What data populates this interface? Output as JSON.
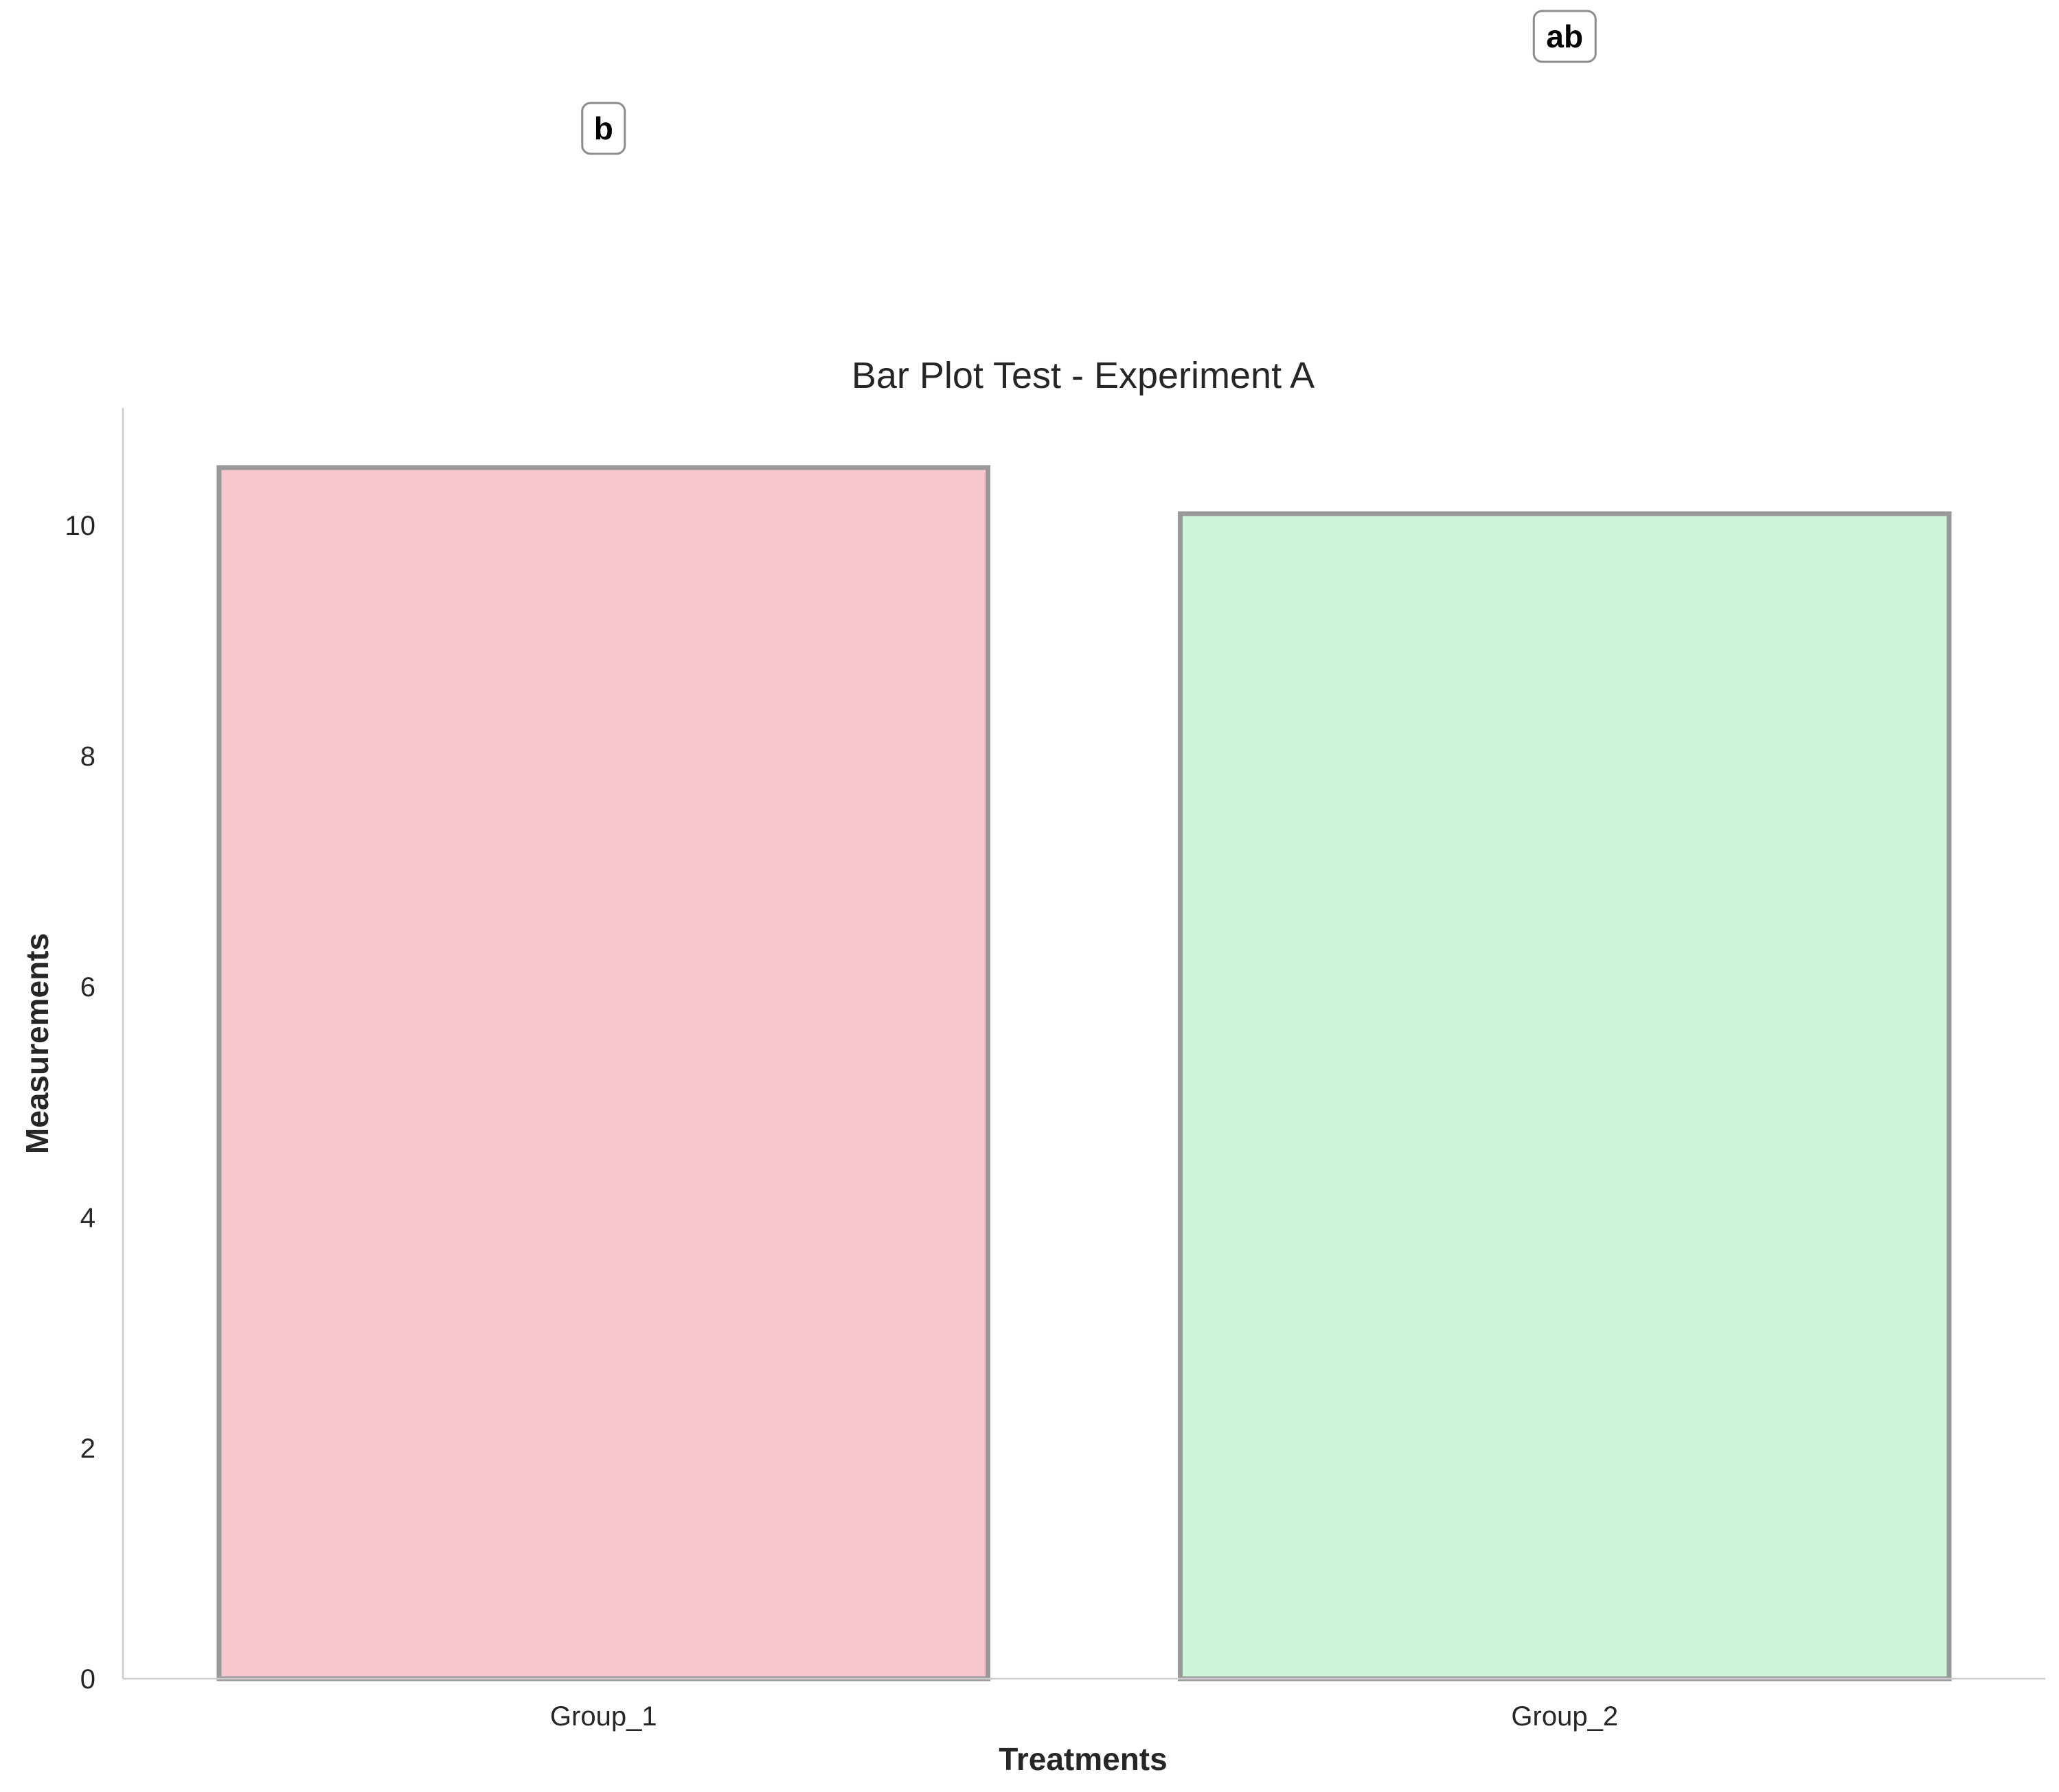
{
  "chart_data": {
    "type": "bar",
    "title": "Bar Plot Test - Experiment A",
    "xlabel": "Treatments",
    "ylabel": "Measurements",
    "categories": [
      "Group_1",
      "Group_2"
    ],
    "values": [
      10.5,
      10.1
    ],
    "significance_letters": [
      "b",
      "ab"
    ],
    "ylim": [
      0,
      11.05
    ],
    "yticks": [
      0,
      2,
      4,
      6,
      8,
      10
    ],
    "grid": false,
    "colors": [
      "#f7c6ce",
      "#cff5d8"
    ],
    "edge_color": "#999999"
  }
}
